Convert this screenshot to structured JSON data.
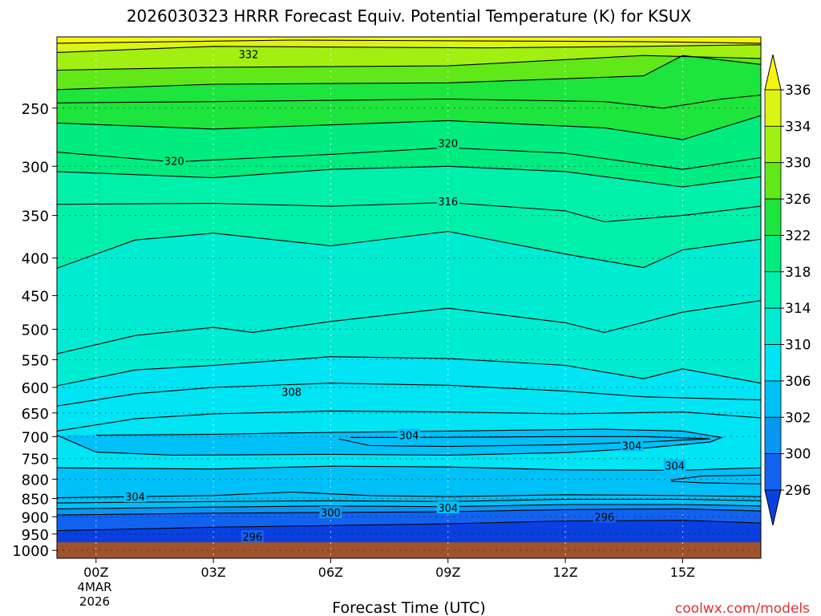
{
  "chart_data": {
    "type": "heatmap",
    "title": "2026030323 HRRR Forecast Equiv. Potential Temperature (K) for KSUX",
    "xlabel": "Forecast Time (UTC)",
    "x_ticks": [
      {
        "hour": 0,
        "label": "00Z"
      },
      {
        "hour": 3,
        "label": "03Z"
      },
      {
        "hour": 6,
        "label": "06Z"
      },
      {
        "hour": 9,
        "label": "09Z"
      },
      {
        "hour": 12,
        "label": "12Z"
      },
      {
        "hour": 15,
        "label": "15Z"
      }
    ],
    "date_label": [
      "4MAR",
      "2026"
    ],
    "xlim": [
      -1,
      17
    ],
    "ylabel": "",
    "y_scale": "log",
    "y_ticks": [
      250,
      300,
      350,
      400,
      450,
      500,
      550,
      600,
      650,
      700,
      750,
      800,
      850,
      900,
      950,
      1000
    ],
    "ylim": [
      200,
      1025
    ],
    "ground_level_hpa": 975,
    "grid": true,
    "colorbar": {
      "levels": [
        296,
        300,
        302,
        306,
        310,
        314,
        318,
        322,
        326,
        330,
        334,
        336
      ],
      "labels": [
        "296",
        "300",
        "302",
        "306",
        "310",
        "314",
        "318",
        "322",
        "326",
        "330",
        "334",
        "336"
      ],
      "colors": [
        "#0a40e0",
        "#1262f0",
        "#0a96f0",
        "#00c0f8",
        "#00e4f4",
        "#00ecd2",
        "#00f0ac",
        "#00ec80",
        "#1ee43e",
        "#62e818",
        "#a2f012",
        "#dcf414",
        "#f6f60a"
      ],
      "extend": "both"
    },
    "band_boundaries": [
      {
        "theta": 335,
        "pts": [
          [
            -1,
            204
          ],
          [
            5,
            202
          ],
          [
            14,
            203
          ],
          [
            17,
            204
          ]
        ]
      },
      {
        "theta": 333,
        "pts": [
          [
            -1,
            210
          ],
          [
            3,
            206
          ],
          [
            10,
            207
          ],
          [
            14,
            206
          ],
          [
            17,
            205
          ]
        ]
      },
      {
        "theta": 330,
        "pts": [
          [
            -1,
            222
          ],
          [
            3,
            220
          ],
          [
            9,
            219
          ],
          [
            14,
            212
          ],
          [
            17,
            214
          ]
        ]
      },
      {
        "theta": 327,
        "pts": [
          [
            -1,
            236
          ],
          [
            3,
            232
          ],
          [
            9,
            231
          ],
          [
            14,
            226
          ],
          [
            15,
            212
          ],
          [
            17,
            218
          ]
        ]
      },
      {
        "theta": 324,
        "pts": [
          [
            -1,
            246
          ],
          [
            3,
            245
          ],
          [
            9,
            243
          ],
          [
            13,
            245
          ],
          [
            14.5,
            250
          ],
          [
            16,
            243
          ],
          [
            17,
            240
          ]
        ]
      },
      {
        "theta": 322,
        "pts": [
          [
            -1,
            262
          ],
          [
            3,
            267
          ],
          [
            9,
            260
          ],
          [
            13,
            266
          ],
          [
            15,
            276
          ],
          [
            17,
            256
          ]
        ]
      },
      {
        "theta": 320,
        "pts": [
          [
            -1,
            287
          ],
          [
            2,
            296
          ],
          [
            6,
            289
          ],
          [
            9,
            283
          ],
          [
            12,
            288
          ],
          [
            15,
            303
          ],
          [
            17,
            292
          ]
        ]
      },
      {
        "theta": 318,
        "pts": [
          [
            -1,
            305
          ],
          [
            3,
            311
          ],
          [
            6,
            303
          ],
          [
            9,
            300
          ],
          [
            12,
            305
          ],
          [
            15,
            320
          ],
          [
            17,
            310
          ]
        ]
      },
      {
        "theta": 316,
        "pts": [
          [
            -1,
            338
          ],
          [
            3,
            337
          ],
          [
            6,
            340
          ],
          [
            9,
            336
          ],
          [
            12,
            345
          ],
          [
            13,
            357
          ],
          [
            15,
            350
          ],
          [
            17,
            340
          ]
        ]
      },
      {
        "theta": 314,
        "pts": [
          [
            -1,
            413
          ],
          [
            1,
            378
          ],
          [
            3,
            370
          ],
          [
            6,
            385
          ],
          [
            9,
            368
          ],
          [
            12,
            395
          ],
          [
            14,
            412
          ],
          [
            15,
            390
          ],
          [
            17,
            377
          ]
        ]
      },
      {
        "theta": 312,
        "pts": [
          [
            -1,
            540
          ],
          [
            1,
            510
          ],
          [
            3,
            497
          ],
          [
            4,
            505
          ],
          [
            6,
            488
          ],
          [
            9,
            468
          ],
          [
            12,
            490
          ],
          [
            13,
            505
          ],
          [
            15,
            474
          ],
          [
            17,
            457
          ]
        ]
      },
      {
        "theta": 310,
        "pts": [
          [
            -1,
            597
          ],
          [
            1,
            568
          ],
          [
            3,
            560
          ],
          [
            6,
            545
          ],
          [
            9,
            548
          ],
          [
            12,
            560
          ],
          [
            14,
            584
          ],
          [
            15,
            566
          ],
          [
            17,
            592
          ]
        ]
      },
      {
        "theta": 308,
        "pts": [
          [
            -1,
            636
          ],
          [
            1,
            612
          ],
          [
            3,
            600
          ],
          [
            6,
            592
          ],
          [
            9,
            596
          ],
          [
            12,
            607
          ],
          [
            14,
            618
          ],
          [
            17,
            624
          ]
        ]
      },
      {
        "theta": 307,
        "pts": [
          [
            -1,
            688
          ],
          [
            1,
            662
          ],
          [
            3,
            652
          ],
          [
            6,
            646
          ],
          [
            9,
            648
          ],
          [
            12,
            652
          ],
          [
            15,
            648
          ],
          [
            17,
            660
          ]
        ]
      },
      {
        "theta": 305,
        "pts": [
          [
            -1,
            772
          ],
          [
            3,
            775
          ],
          [
            6,
            768
          ],
          [
            9,
            770
          ],
          [
            12,
            777
          ],
          [
            15,
            778
          ],
          [
            17,
            772
          ]
        ]
      },
      {
        "theta": 304,
        "pts": [
          [
            -1,
            848
          ],
          [
            3,
            842
          ],
          [
            5,
            833
          ],
          [
            7,
            842
          ],
          [
            9,
            845
          ],
          [
            12,
            840
          ],
          [
            15,
            842
          ],
          [
            17,
            845
          ]
        ]
      },
      {
        "theta": 303,
        "pts": [
          [
            -1,
            862
          ],
          [
            3,
            858
          ],
          [
            6,
            856
          ],
          [
            9,
            858
          ],
          [
            12,
            852
          ],
          [
            15,
            852
          ],
          [
            17,
            856
          ]
        ]
      },
      {
        "theta": 302,
        "pts": [
          [
            -1,
            878
          ],
          [
            3,
            873
          ],
          [
            6,
            870
          ],
          [
            9,
            872
          ],
          [
            12,
            866
          ],
          [
            15,
            866
          ],
          [
            17,
            870
          ]
        ]
      },
      {
        "theta": 300,
        "pts": [
          [
            -1,
            895
          ],
          [
            3,
            890
          ],
          [
            6,
            888
          ],
          [
            9,
            886
          ],
          [
            12,
            880
          ],
          [
            15,
            878
          ],
          [
            17,
            884
          ]
        ]
      },
      {
        "theta": 298,
        "pts": [
          [
            -1,
            940
          ],
          [
            3,
            930
          ],
          [
            6,
            925
          ],
          [
            9,
            920
          ],
          [
            12,
            912
          ],
          [
            15,
            910
          ],
          [
            17,
            918
          ]
        ]
      }
    ],
    "closed_contours": [
      {
        "level": 304,
        "pts": [
          [
            -1,
            697
          ],
          [
            0,
            735
          ],
          [
            2,
            742
          ],
          [
            6,
            740
          ],
          [
            9,
            742
          ],
          [
            12,
            736
          ],
          [
            14,
            726
          ],
          [
            15.7,
            712
          ],
          [
            16,
            702
          ],
          [
            15,
            688
          ],
          [
            13,
            684
          ],
          [
            10,
            687
          ],
          [
            7,
            690
          ],
          [
            5,
            692
          ],
          [
            3,
            695
          ],
          [
            0,
            697
          ]
        ]
      },
      {
        "level": 304,
        "pts": [
          [
            6.2,
            705
          ],
          [
            7,
            720
          ],
          [
            9,
            722
          ],
          [
            12,
            718
          ],
          [
            14,
            712
          ],
          [
            15.7,
            705
          ],
          [
            14,
            700
          ],
          [
            12,
            700
          ],
          [
            10,
            701
          ],
          [
            8,
            702
          ],
          [
            6.5,
            702
          ]
        ]
      },
      {
        "level": 304,
        "pts": [
          [
            14.7,
            802
          ],
          [
            15.5,
            792
          ],
          [
            17,
            790
          ]
        ]
      },
      {
        "level": 304,
        "pts": [
          [
            14.7,
            805
          ],
          [
            15.5,
            809
          ],
          [
            17,
            812
          ]
        ]
      }
    ],
    "contour_labels": [
      {
        "text": "332",
        "hour": 3.9,
        "hpa": 211
      },
      {
        "text": "320",
        "hour": 9.0,
        "hpa": 279
      },
      {
        "text": "320",
        "hour": 2.0,
        "hpa": 295
      },
      {
        "text": "316",
        "hour": 9.0,
        "hpa": 335
      },
      {
        "text": "308",
        "hour": 5.0,
        "hpa": 608
      },
      {
        "text": "304",
        "hour": 8.0,
        "hpa": 697
      },
      {
        "text": "304",
        "hour": 13.7,
        "hpa": 720
      },
      {
        "text": "304",
        "hour": 14.8,
        "hpa": 767
      },
      {
        "text": "304",
        "hour": 1.0,
        "hpa": 845
      },
      {
        "text": "304",
        "hour": 9.0,
        "hpa": 875
      },
      {
        "text": "300",
        "hour": 6.0,
        "hpa": 888
      },
      {
        "text": "296",
        "hour": 13.0,
        "hpa": 900
      },
      {
        "text": "296",
        "hour": 4.0,
        "hpa": 958
      }
    ]
  },
  "credit": "coolwx.com/models",
  "colors": {
    "ground": "#a0522d",
    "credit": "#e03030",
    "contour": "#000000"
  }
}
